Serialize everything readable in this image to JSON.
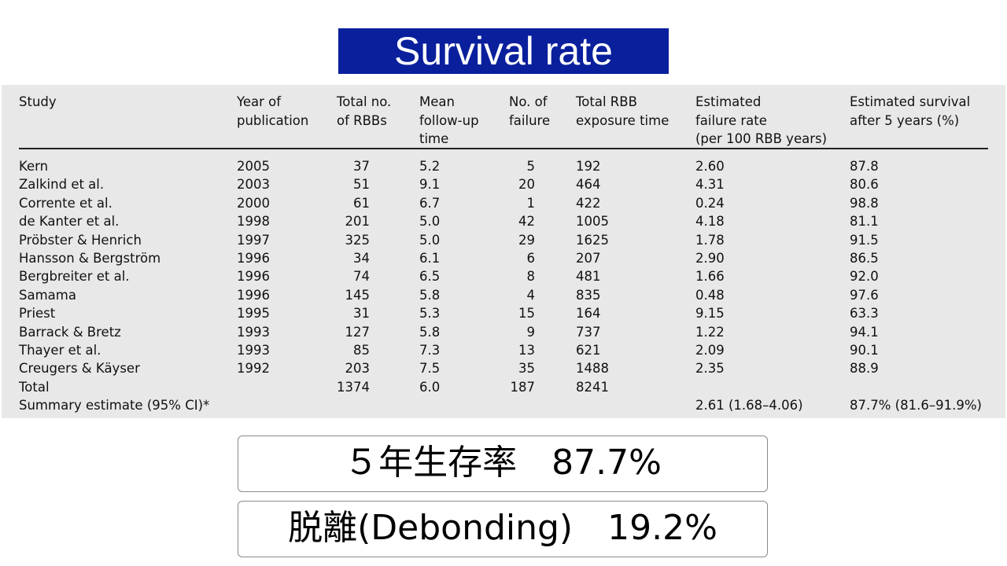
{
  "slide_title": "Survival rate",
  "table": {
    "headers": [
      "Study",
      "Year of\npublication",
      "Total no.\nof RBBs",
      "Mean\nfollow-up\ntime",
      "No. of\nfailure",
      "Total RBB\nexposure time",
      "Estimated\nfailure rate\n(per 100 RBB years)",
      "Estimated survival\nafter 5 years (%)"
    ],
    "rows": [
      [
        "Kern",
        "2005",
        "37",
        "5.2",
        "5",
        "192",
        "2.60",
        "87.8"
      ],
      [
        "Zalkind et al.",
        "2003",
        "51",
        "9.1",
        "20",
        "464",
        "4.31",
        "80.6"
      ],
      [
        "Corrente et al.",
        "2000",
        "61",
        "6.7",
        "1",
        "422",
        "0.24",
        "98.8"
      ],
      [
        "de Kanter et al.",
        "1998",
        "201",
        "5.0",
        "42",
        "1005",
        "4.18",
        "81.1"
      ],
      [
        "Pröbster & Henrich",
        "1997",
        "325",
        "5.0",
        "29",
        "1625",
        "1.78",
        "91.5"
      ],
      [
        "Hansson & Bergström",
        "1996",
        "34",
        "6.1",
        "6",
        "207",
        "2.90",
        "86.5"
      ],
      [
        "Bergbreiter et al.",
        "1996",
        "74",
        "6.5",
        "8",
        "481",
        "1.66",
        "92.0"
      ],
      [
        "Samama",
        "1996",
        "145",
        "5.8",
        "4",
        "835",
        "0.48",
        "97.6"
      ],
      [
        "Priest",
        "1995",
        "31",
        "5.3",
        "15",
        "164",
        "9.15",
        "63.3"
      ],
      [
        "Barrack & Bretz",
        "1993",
        "127",
        "5.8",
        "9",
        "737",
        "1.22",
        "94.1"
      ],
      [
        "Thayer et al.",
        "1993",
        "85",
        "7.3",
        "13",
        "621",
        "2.09",
        "90.1"
      ],
      [
        "Creugers & Käyser",
        "1992",
        "203",
        "7.5",
        "35",
        "1488",
        "2.35",
        "88.9"
      ],
      [
        "Total",
        "",
        "1374",
        "6.0",
        "187",
        "8241",
        "",
        ""
      ],
      [
        "Summary estimate (95% CI)*",
        "",
        "",
        "",
        "",
        "",
        "2.61 (1.68–4.06)",
        "87.7% (81.6–91.9%)"
      ]
    ]
  },
  "callouts": {
    "survival": "５年生存率　87.7%",
    "debonding": "脱離(Debonding)　19.2%"
  },
  "colors": {
    "title_bg": "#0a1f9c",
    "table_bg": "#e8e8e8"
  }
}
